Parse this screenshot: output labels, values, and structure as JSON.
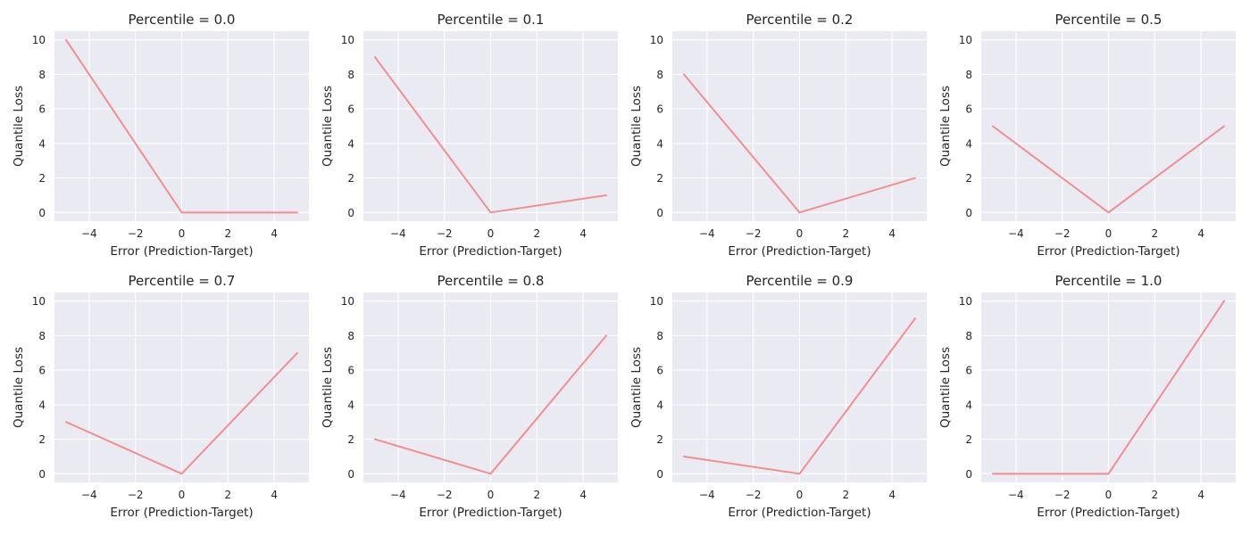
{
  "chart_data": [
    {
      "type": "line",
      "title": "Percentile = 0.0",
      "xlabel": "Error (Prediction-Target)",
      "ylabel": "Quantile Loss",
      "x": [
        -5,
        0,
        5
      ],
      "y": [
        10,
        0,
        0
      ],
      "xlim": [
        -5.5,
        5.5
      ],
      "ylim": [
        -0.5,
        10.5
      ],
      "xticks": [
        -4,
        -2,
        0,
        2,
        4
      ],
      "yticks": [
        0,
        2,
        4,
        6,
        8,
        10
      ],
      "grid": true
    },
    {
      "type": "line",
      "title": "Percentile = 0.1",
      "xlabel": "Error (Prediction-Target)",
      "ylabel": "Quantile Loss",
      "x": [
        -5,
        0,
        5
      ],
      "y": [
        9,
        0,
        1
      ],
      "xlim": [
        -5.5,
        5.5
      ],
      "ylim": [
        -0.5,
        10.5
      ],
      "xticks": [
        -4,
        -2,
        0,
        2,
        4
      ],
      "yticks": [
        0,
        2,
        4,
        6,
        8,
        10
      ],
      "grid": true
    },
    {
      "type": "line",
      "title": "Percentile = 0.2",
      "xlabel": "Error (Prediction-Target)",
      "ylabel": "Quantile Loss",
      "x": [
        -5,
        0,
        5
      ],
      "y": [
        8,
        0,
        2
      ],
      "xlim": [
        -5.5,
        5.5
      ],
      "ylim": [
        -0.5,
        10.5
      ],
      "xticks": [
        -4,
        -2,
        0,
        2,
        4
      ],
      "yticks": [
        0,
        2,
        4,
        6,
        8,
        10
      ],
      "grid": true
    },
    {
      "type": "line",
      "title": "Percentile = 0.5",
      "xlabel": "Error (Prediction-Target)",
      "ylabel": "Quantile Loss",
      "x": [
        -5,
        0,
        5
      ],
      "y": [
        5,
        0,
        5
      ],
      "xlim": [
        -5.5,
        5.5
      ],
      "ylim": [
        -0.5,
        10.5
      ],
      "xticks": [
        -4,
        -2,
        0,
        2,
        4
      ],
      "yticks": [
        0,
        2,
        4,
        6,
        8,
        10
      ],
      "grid": true
    },
    {
      "type": "line",
      "title": "Percentile = 0.7",
      "xlabel": "Error (Prediction-Target)",
      "ylabel": "Quantile Loss",
      "x": [
        -5,
        0,
        5
      ],
      "y": [
        3,
        0,
        7
      ],
      "xlim": [
        -5.5,
        5.5
      ],
      "ylim": [
        -0.5,
        10.5
      ],
      "xticks": [
        -4,
        -2,
        0,
        2,
        4
      ],
      "yticks": [
        0,
        2,
        4,
        6,
        8,
        10
      ],
      "grid": true
    },
    {
      "type": "line",
      "title": "Percentile = 0.8",
      "xlabel": "Error (Prediction-Target)",
      "ylabel": "Quantile Loss",
      "x": [
        -5,
        0,
        5
      ],
      "y": [
        2,
        0,
        8
      ],
      "xlim": [
        -5.5,
        5.5
      ],
      "ylim": [
        -0.5,
        10.5
      ],
      "xticks": [
        -4,
        -2,
        0,
        2,
        4
      ],
      "yticks": [
        0,
        2,
        4,
        6,
        8,
        10
      ],
      "grid": true
    },
    {
      "type": "line",
      "title": "Percentile = 0.9",
      "xlabel": "Error (Prediction-Target)",
      "ylabel": "Quantile Loss",
      "x": [
        -5,
        0,
        5
      ],
      "y": [
        1,
        0,
        9
      ],
      "xlim": [
        -5.5,
        5.5
      ],
      "ylim": [
        -0.5,
        10.5
      ],
      "xticks": [
        -4,
        -2,
        0,
        2,
        4
      ],
      "yticks": [
        0,
        2,
        4,
        6,
        8,
        10
      ],
      "grid": true
    },
    {
      "type": "line",
      "title": "Percentile = 1.0",
      "xlabel": "Error (Prediction-Target)",
      "ylabel": "Quantile Loss",
      "x": [
        -5,
        0,
        5
      ],
      "y": [
        0,
        0,
        10
      ],
      "xlim": [
        -5.5,
        5.5
      ],
      "ylim": [
        -0.5,
        10.5
      ],
      "xticks": [
        -4,
        -2,
        0,
        2,
        4
      ],
      "yticks": [
        0,
        2,
        4,
        6,
        8,
        10
      ],
      "grid": true
    }
  ],
  "colors": {
    "line": "#f28e8e",
    "plot_background": "#eaeaf2",
    "grid": "#ffffff",
    "text": "#262626"
  }
}
